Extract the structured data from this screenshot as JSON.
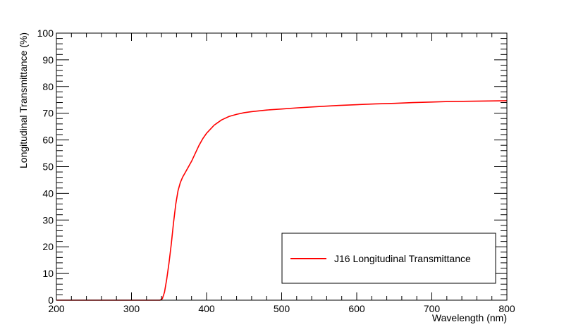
{
  "chart_data": {
    "type": "line",
    "title": "",
    "xlabel": "Wavelength (nm)",
    "ylabel": "Longitudinal Transmittance (%)",
    "xlim": [
      200,
      800
    ],
    "ylim": [
      0,
      100
    ],
    "x_ticks": [
      200,
      300,
      400,
      500,
      600,
      700,
      800
    ],
    "y_ticks": [
      0,
      10,
      20,
      30,
      40,
      50,
      60,
      70,
      80,
      90,
      100
    ],
    "grid": false,
    "legend_position": "bottom-right",
    "series": [
      {
        "name": "J16 Longitudinal Transmittance",
        "color": "#ff0000",
        "points": [
          [
            200,
            0
          ],
          [
            338,
            0
          ],
          [
            341,
            0.5
          ],
          [
            344,
            3
          ],
          [
            347,
            8
          ],
          [
            350,
            14
          ],
          [
            353,
            21
          ],
          [
            356,
            29
          ],
          [
            359,
            36
          ],
          [
            362,
            41
          ],
          [
            365,
            44
          ],
          [
            368,
            46
          ],
          [
            372,
            48
          ],
          [
            376,
            50
          ],
          [
            380,
            52
          ],
          [
            385,
            55
          ],
          [
            390,
            58
          ],
          [
            395,
            60.5
          ],
          [
            400,
            62.5
          ],
          [
            405,
            64
          ],
          [
            410,
            65.5
          ],
          [
            415,
            66.5
          ],
          [
            420,
            67.5
          ],
          [
            430,
            68.8
          ],
          [
            440,
            69.6
          ],
          [
            450,
            70.2
          ],
          [
            460,
            70.6
          ],
          [
            480,
            71.2
          ],
          [
            500,
            71.6
          ],
          [
            520,
            72
          ],
          [
            550,
            72.5
          ],
          [
            575,
            72.9
          ],
          [
            600,
            73.2
          ],
          [
            625,
            73.5
          ],
          [
            650,
            73.7
          ],
          [
            675,
            74
          ],
          [
            700,
            74.2
          ],
          [
            725,
            74.4
          ],
          [
            750,
            74.5
          ],
          [
            775,
            74.6
          ],
          [
            800,
            74.7
          ]
        ]
      }
    ]
  }
}
